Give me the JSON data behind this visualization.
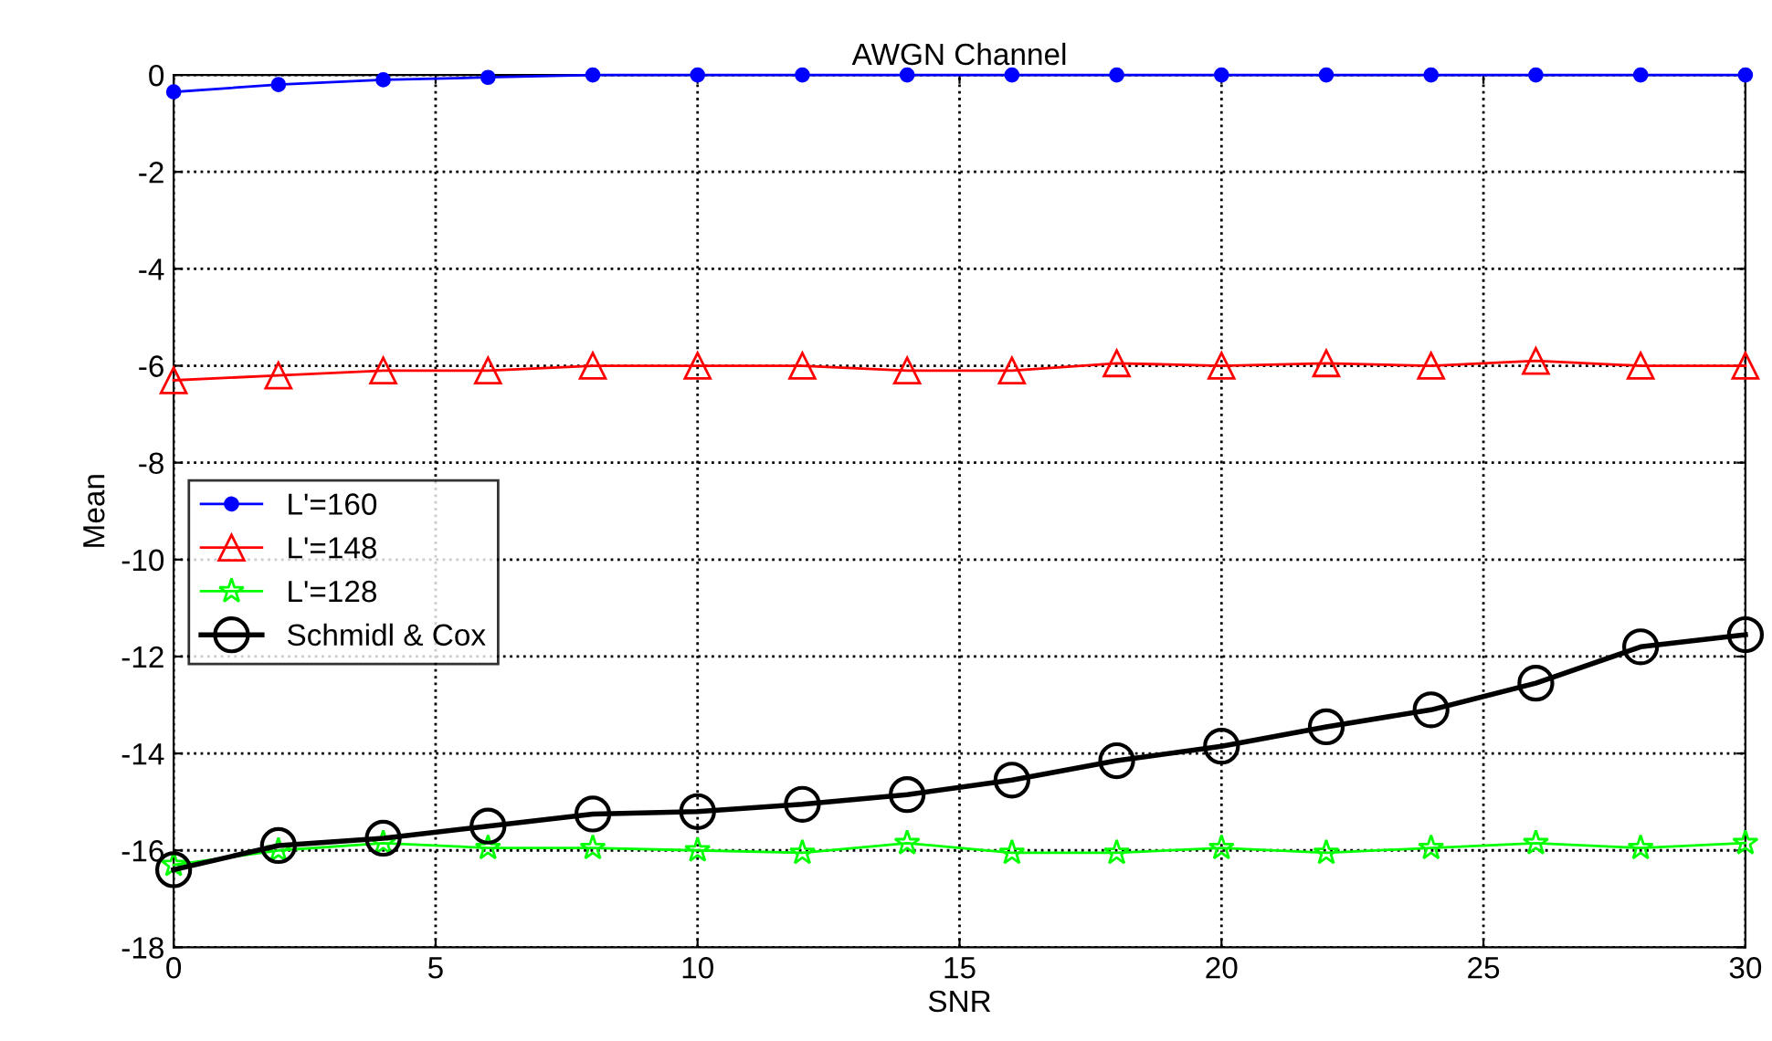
{
  "chart_data": {
    "type": "line",
    "title": "AWGN Channel",
    "xlabel": "SNR",
    "ylabel": "Mean",
    "x": [
      0,
      2,
      4,
      6,
      8,
      10,
      12,
      14,
      16,
      18,
      20,
      22,
      24,
      26,
      28,
      30
    ],
    "series": [
      {
        "name": "L'=160",
        "color": "#0000ff",
        "marker": "circle",
        "values": [
          -0.35,
          -0.2,
          -0.1,
          -0.05,
          0,
          0,
          0,
          0,
          0,
          0,
          0,
          0,
          0,
          0,
          0,
          0
        ]
      },
      {
        "name": "L'=148",
        "color": "#ff0000",
        "marker": "triangle",
        "values": [
          -6.3,
          -6.2,
          -6.1,
          -6.1,
          -6.0,
          -6.0,
          -6.0,
          -6.1,
          -6.1,
          -5.95,
          -6.0,
          -5.95,
          -6.0,
          -5.9,
          -6.0,
          -6.0
        ]
      },
      {
        "name": "L'=128",
        "color": "#00ff00",
        "marker": "star",
        "values": [
          -16.3,
          -16.0,
          -15.85,
          -15.95,
          -15.95,
          -16.0,
          -16.05,
          -15.85,
          -16.05,
          -16.05,
          -15.95,
          -16.05,
          -15.95,
          -15.85,
          -15.95,
          -15.85
        ]
      },
      {
        "name": "Schmidl & Cox",
        "color": "#000000",
        "marker": "circle",
        "values": [
          -16.4,
          -15.9,
          -15.75,
          -15.5,
          -15.25,
          -15.2,
          -15.05,
          -14.85,
          -14.55,
          -14.15,
          -13.85,
          -13.45,
          -13.1,
          -12.55,
          -11.8,
          -11.55
        ]
      }
    ],
    "xlim": [
      0,
      30
    ],
    "xticks": [
      0,
      5,
      10,
      15,
      20,
      25,
      30
    ],
    "ylim": [
      -18,
      0
    ],
    "yticks": [
      -18,
      -16,
      -14,
      -12,
      -10,
      -8,
      -6,
      -4,
      -2,
      0
    ],
    "grid": true,
    "legend": "left",
    "line_style": "solid"
  }
}
